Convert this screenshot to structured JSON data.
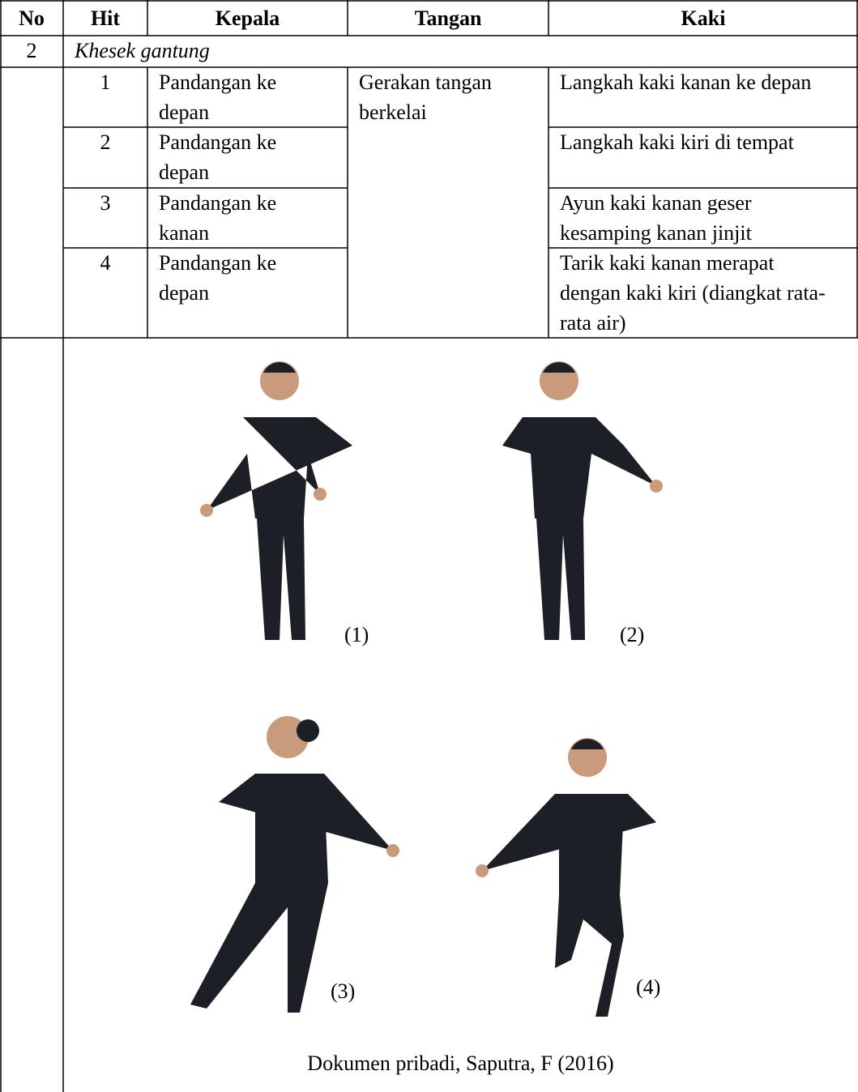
{
  "table": {
    "header": [
      "No",
      "Hit",
      "Kepala",
      "Tangan",
      "Kaki"
    ],
    "section": {
      "no": "2",
      "name": "Khesek gantung"
    },
    "rows": [
      {
        "hit": "1",
        "kepala": "Pandangan ke depan",
        "kaki": "Langkah kaki kanan ke depan"
      },
      {
        "hit": "2",
        "kepala": "Pandangan ke depan",
        "kaki": "Langkah kaki kiri di tempat"
      },
      {
        "hit": "3",
        "kepala": "Pandangan ke kanan",
        "kaki": "Ayun kaki kanan geser kesamping kanan jinjit"
      },
      {
        "hit": "4",
        "kepala": "Pandangan ke depan",
        "kaki": "Tarik kaki kanan merapat dengan kaki kiri (diangkat rata-rata air)"
      }
    ],
    "tangan": "Gerakan tangan berkelai"
  },
  "figure": {
    "labels": [
      "(1)",
      "(2)",
      "(3)",
      "(4)"
    ],
    "caption": "Dokumen pribadi, Saputra, F (2016)"
  }
}
